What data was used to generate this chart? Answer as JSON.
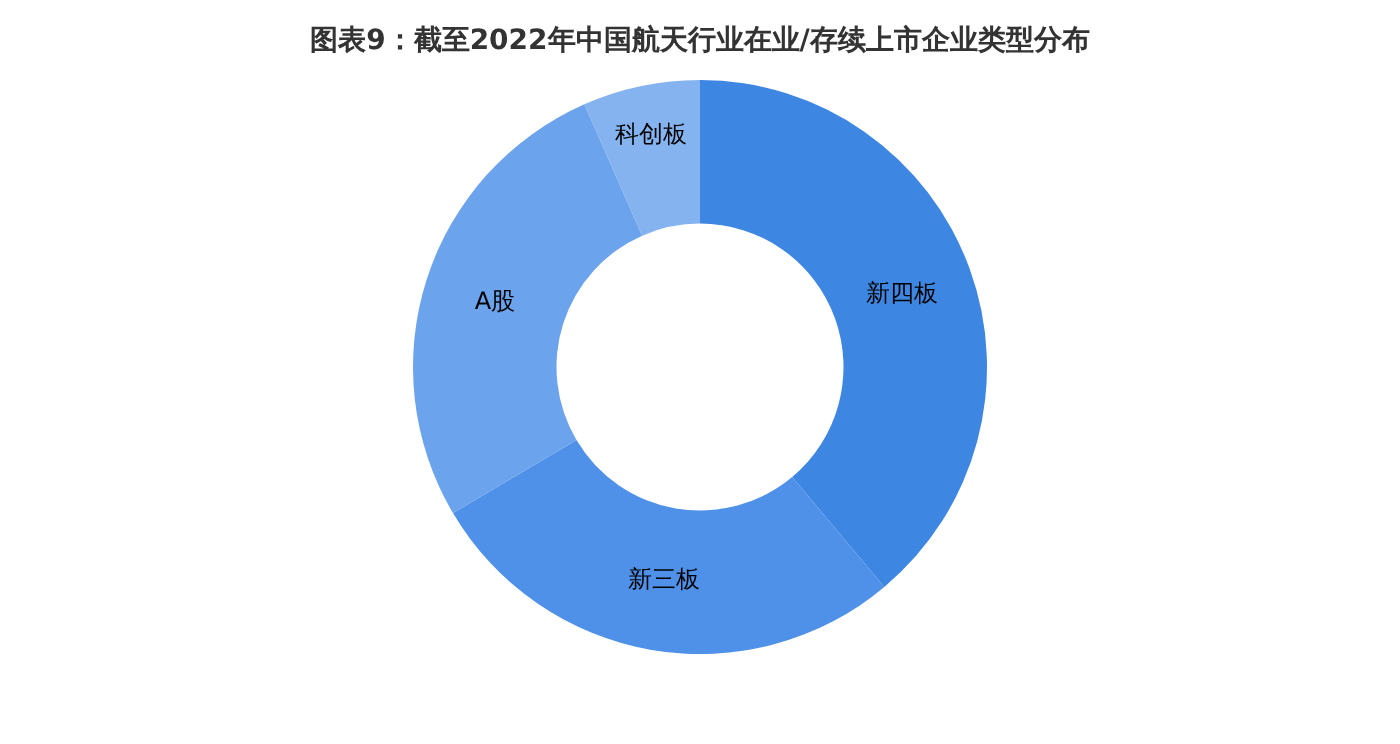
{
  "chart_data": {
    "type": "donut",
    "title": "图表9：截至2022年中国航天行业在业/存续上市企业类型分布",
    "categories": [
      "新四板",
      "新三板",
      "A股",
      "科创板"
    ],
    "values": [
      38.9,
      27.6,
      26.9,
      6.6
    ],
    "colors": [
      "#3d86e2",
      "#4f91e8",
      "#6ba3ec",
      "#84b3ef"
    ]
  }
}
